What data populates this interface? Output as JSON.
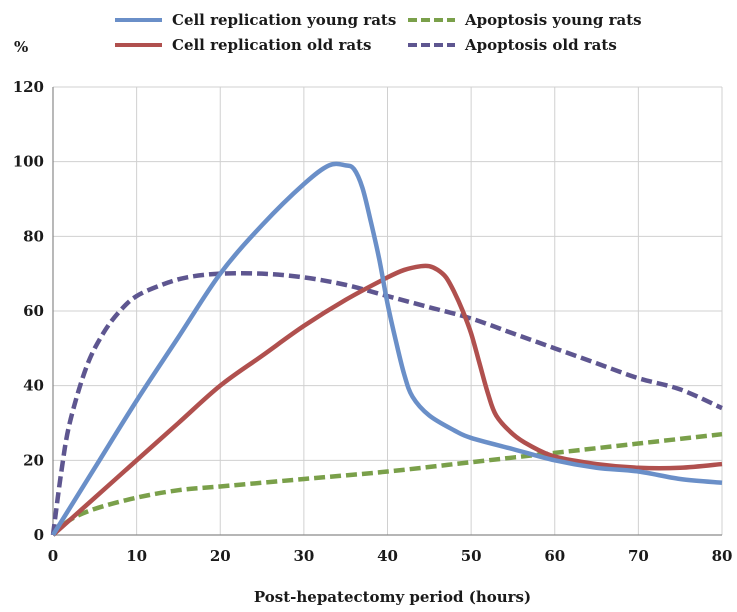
{
  "chart_data": {
    "type": "line",
    "title": "",
    "xlabel": "Post-hepatectomy period (hours)",
    "ylabel": "%",
    "xlim": [
      0,
      80
    ],
    "ylim": [
      0,
      120
    ],
    "xticks": [
      0,
      10,
      20,
      30,
      40,
      50,
      60,
      70,
      80
    ],
    "yticks": [
      0,
      20,
      40,
      60,
      80,
      100,
      120
    ],
    "grid": true,
    "legend_position": "top",
    "series": [
      {
        "name": "Cell replication young rats",
        "color": "#6a8fc8",
        "style": "solid",
        "x": [
          0,
          5,
          10,
          15,
          20,
          25,
          30,
          33,
          35,
          36,
          37,
          38,
          39,
          40,
          41,
          42,
          43,
          45,
          48,
          50,
          55,
          60,
          65,
          70,
          75,
          80
        ],
        "y": [
          0,
          18,
          36,
          53,
          70,
          83,
          94,
          99,
          99,
          98,
          93,
          84,
          74,
          62,
          52,
          43,
          37,
          32,
          28,
          26,
          23,
          20,
          18,
          17,
          15,
          14
        ]
      },
      {
        "name": "Cell replication old rats",
        "color": "#b0504e",
        "style": "solid",
        "x": [
          0,
          5,
          10,
          15,
          20,
          25,
          30,
          35,
          40,
          42,
          44,
          45,
          46,
          47,
          48,
          49,
          50,
          51,
          52,
          53,
          55,
          57,
          60,
          65,
          70,
          75,
          80
        ],
        "y": [
          0,
          10,
          20,
          30,
          40,
          48,
          56,
          63,
          69,
          71,
          72,
          72,
          71,
          69,
          65,
          60,
          54,
          46,
          38,
          32,
          27,
          24,
          21,
          19,
          18,
          18,
          19
        ]
      },
      {
        "name": "Apoptosis young rats",
        "color": "#7aa04a",
        "style": "dashed",
        "x": [
          0,
          2,
          5,
          10,
          15,
          20,
          30,
          40,
          50,
          60,
          70,
          80
        ],
        "y": [
          0,
          4,
          7,
          10,
          12,
          13,
          15,
          17,
          19.5,
          22,
          24.5,
          27
        ]
      },
      {
        "name": "Apoptosis old rats",
        "color": "#5e5690",
        "style": "dashed",
        "x": [
          0,
          1,
          2,
          4,
          6,
          8,
          10,
          13,
          16,
          20,
          25,
          30,
          35,
          40,
          45,
          50,
          55,
          60,
          65,
          70,
          75,
          80
        ],
        "y": [
          0,
          17,
          30,
          45,
          54,
          60,
          64,
          67,
          69,
          70,
          70,
          69,
          67,
          64,
          61,
          58,
          54,
          50,
          46,
          42,
          39,
          34
        ]
      }
    ]
  }
}
